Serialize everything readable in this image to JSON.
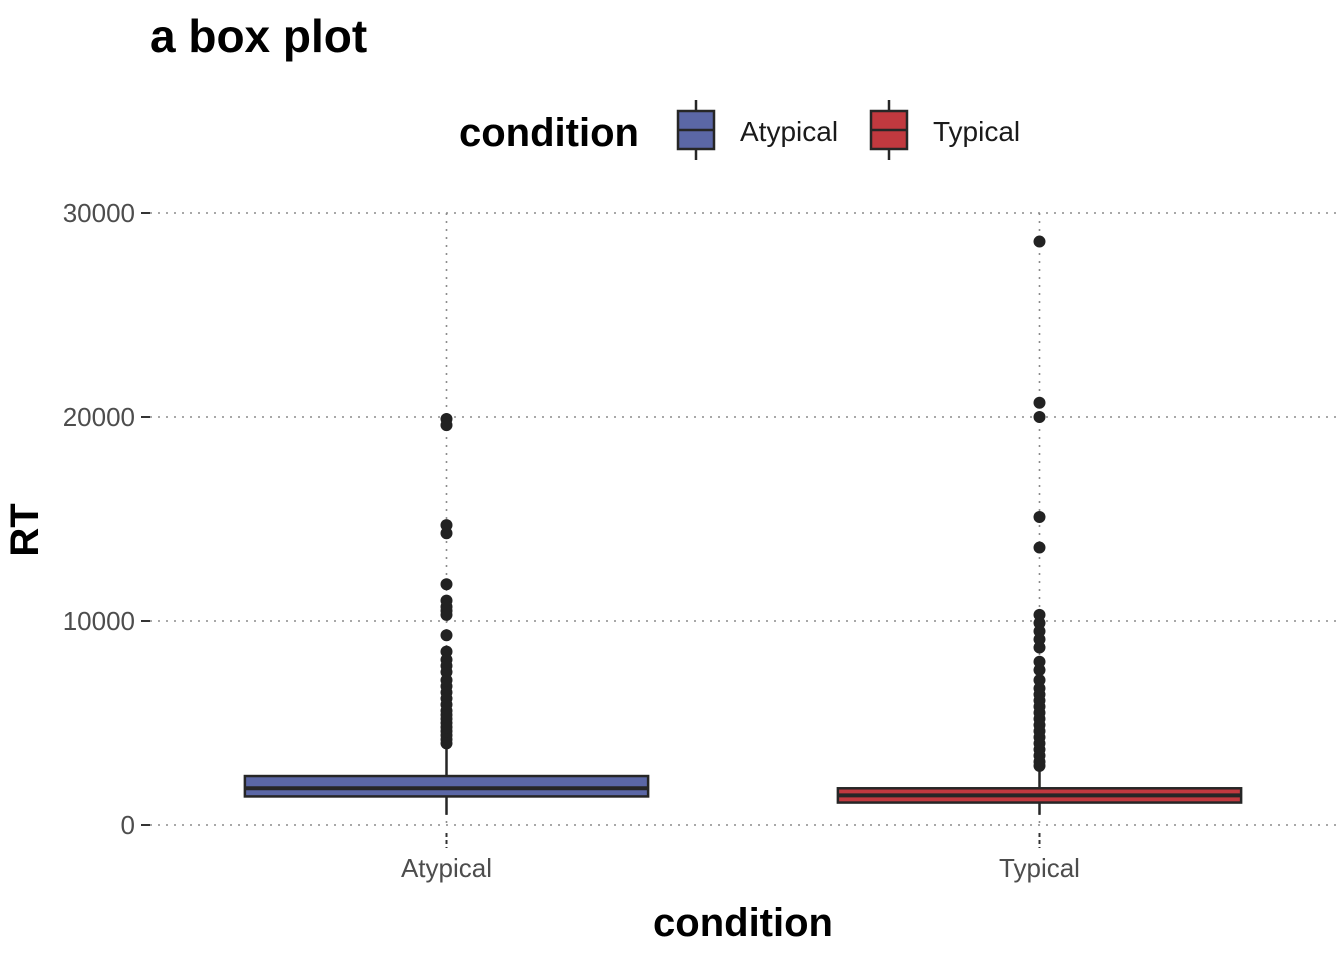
{
  "chart_data": {
    "type": "box",
    "title": "a box plot",
    "xlabel": "condition",
    "ylabel": "RT",
    "ylim": [
      -600,
      30200
    ],
    "yticks": [
      0,
      10000,
      20000,
      30000
    ],
    "ytick_labels": [
      "0",
      "10000",
      "20000",
      "30000"
    ],
    "categories": [
      "Atypical",
      "Typical"
    ],
    "grid": "dotted major lines",
    "legend": {
      "title": "condition",
      "position": "top",
      "entries": [
        {
          "label": "Atypical",
          "color": "#5b67a6"
        },
        {
          "label": "Typical",
          "color": "#c1393f"
        }
      ]
    },
    "boxes": [
      {
        "category": "Atypical",
        "color": "#5b67a6",
        "whisker_low": 500,
        "q1": 1400,
        "median": 1800,
        "q3": 2400,
        "whisker_high": 3900,
        "outliers": [
          19900,
          19600,
          14700,
          14300,
          11800,
          11000,
          10700,
          10500,
          10300,
          9300,
          8500,
          8100,
          7800,
          7500,
          7100,
          6800,
          6500,
          6200,
          5900,
          5600,
          5400,
          5200,
          5000,
          4800,
          4600,
          4400,
          4200,
          4000
        ]
      },
      {
        "category": "Typical",
        "color": "#c1393f",
        "whisker_low": 500,
        "q1": 1100,
        "median": 1450,
        "q3": 1800,
        "whisker_high": 2700,
        "outliers": [
          28600,
          20700,
          20000,
          15100,
          13600,
          10300,
          9900,
          9500,
          9100,
          8700,
          8000,
          7600,
          7100,
          6700,
          6400,
          6100,
          5800,
          5500,
          5200,
          4900,
          4600,
          4300,
          4000,
          3700,
          3400,
          3100,
          2900
        ]
      }
    ]
  }
}
